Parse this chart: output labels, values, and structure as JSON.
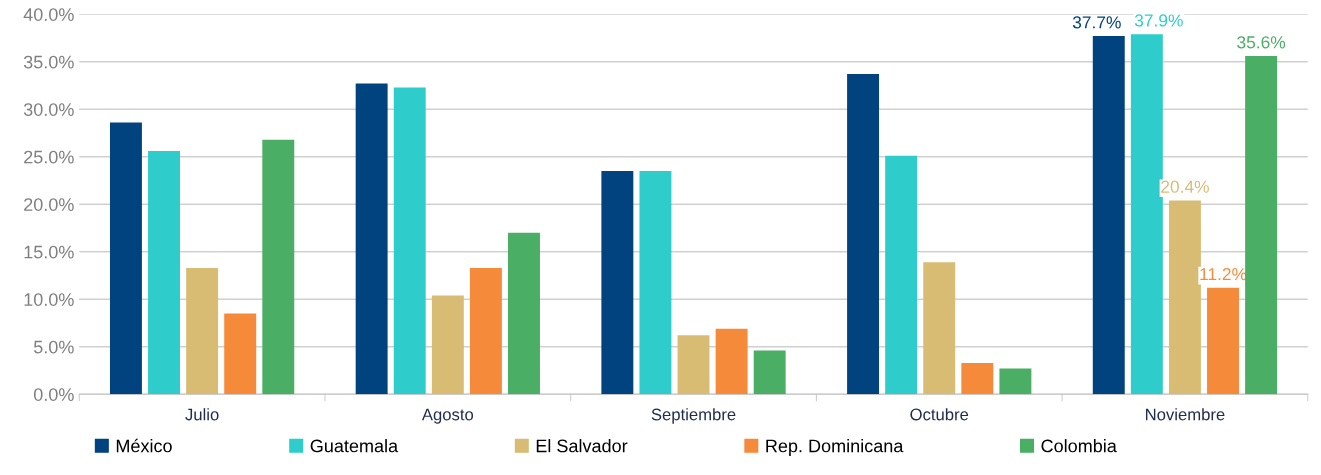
{
  "chart_data": {
    "type": "bar",
    "categories": [
      "Julio",
      "Agosto",
      "Septiembre",
      "Octubre",
      "Noviembre"
    ],
    "series": [
      {
        "name": "México",
        "color": "#00437f",
        "values": [
          28.6,
          32.7,
          23.5,
          33.7,
          37.7
        ],
        "value_labels": [
          null,
          null,
          null,
          null,
          "37.7%"
        ]
      },
      {
        "name": "Guatemala",
        "color": "#2ecdcc",
        "values": [
          25.6,
          32.3,
          23.5,
          25.1,
          37.9
        ],
        "value_labels": [
          null,
          null,
          null,
          null,
          "37.9%"
        ]
      },
      {
        "name": "El Salvador",
        "color": "#d8bc74",
        "values": [
          13.3,
          10.4,
          6.2,
          13.9,
          20.4
        ],
        "value_labels": [
          null,
          null,
          null,
          null,
          "20.4%"
        ]
      },
      {
        "name": "Rep. Dominicana",
        "color": "#f68a3b",
        "values": [
          8.5,
          13.3,
          6.9,
          3.3,
          11.2
        ],
        "value_labels": [
          null,
          null,
          null,
          null,
          "11.2%"
        ]
      },
      {
        "name": "Colombia",
        "color": "#4aae64",
        "values": [
          26.8,
          17.0,
          4.6,
          2.7,
          35.6
        ],
        "value_labels": [
          null,
          null,
          null,
          null,
          "35.6%"
        ]
      }
    ],
    "ylim": [
      0,
      40
    ],
    "yticks": [
      {
        "value": 0,
        "label": "0.0%"
      },
      {
        "value": 5,
        "label": "5.0%"
      },
      {
        "value": 10,
        "label": "10.0%"
      },
      {
        "value": 15,
        "label": "15.0%"
      },
      {
        "value": 20,
        "label": "20.0%"
      },
      {
        "value": 25,
        "label": "25.0%"
      },
      {
        "value": 30,
        "label": "30.0%"
      },
      {
        "value": 35,
        "label": "35.0%"
      },
      {
        "value": 40,
        "label": "40.0%"
      }
    ],
    "grid": "y",
    "legend": "bottom"
  }
}
